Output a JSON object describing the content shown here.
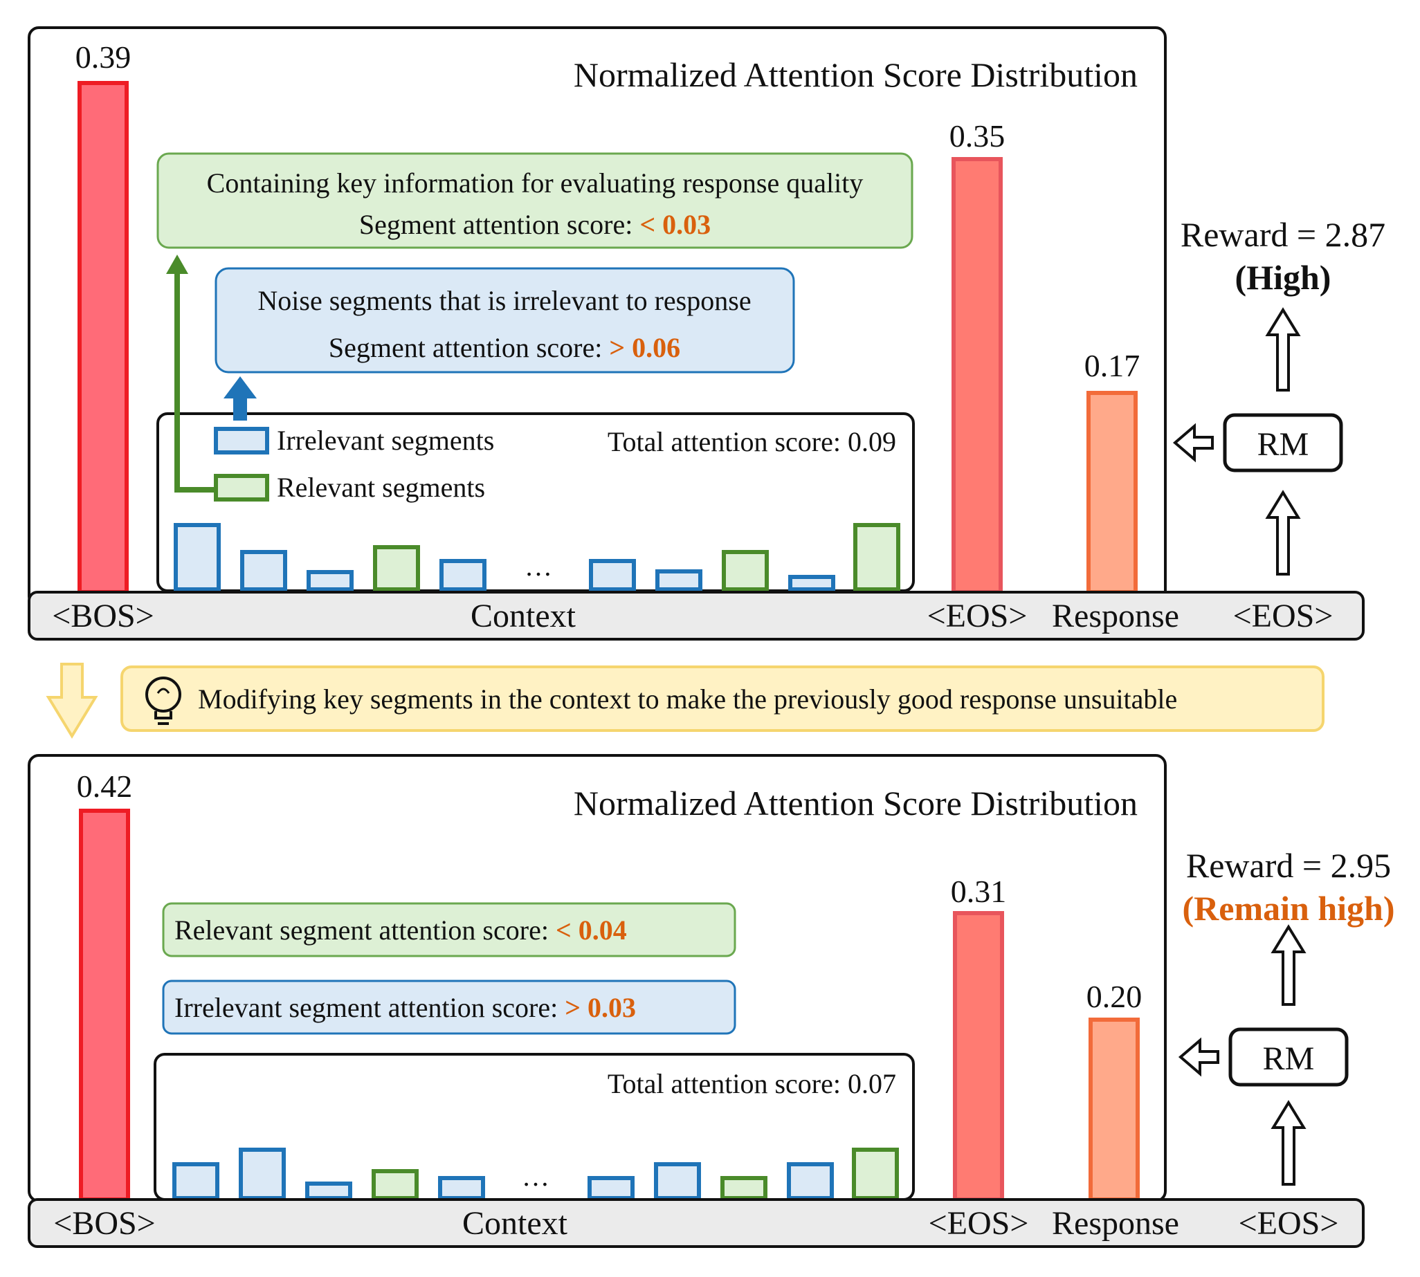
{
  "colors": {
    "bos_bar": "#ff6b78",
    "bos_stroke": "#ee1c24",
    "eos_bar": "#ff7b72",
    "eos_stroke": "#e8555c",
    "resp_bar": "#ffa98a",
    "resp_stroke": "#f26b3a",
    "irrelevant_fill": "#dbe9f6",
    "irrelevant_stroke": "#1f74b8",
    "relevant_fill": "#ddf0d5",
    "relevant_stroke": "#4a8b2a",
    "highlight": "#d9600d",
    "hint_fill": "#fff2c4",
    "hint_stroke": "#f5d56e"
  },
  "transition": {
    "icon": "lightbulb-icon",
    "text": "Modifying key segments in the context to make the previously good response unsuitable"
  },
  "panels": [
    {
      "title": "Normalized Attention Score Distribution",
      "bos_value": "0.39",
      "eos_value": "0.35",
      "response_value": "0.17",
      "axis": {
        "bos": "<BOS>",
        "context": "Context",
        "eos": "<EOS>",
        "response": "Response",
        "eos2": "<EOS>"
      },
      "total_attention": "Total attention score: 0.09",
      "legend": {
        "irrelevant": "Irrelevant segments",
        "relevant": "Relevant segments"
      },
      "green_box": {
        "line1": "Containing key information for evaluating response quality",
        "line2_prefix": "Segment attention score: ",
        "line2_value": "< 0.03"
      },
      "blue_box": {
        "line1": "Noise segments that is irrelevant to response",
        "line2_prefix": "Segment attention score: ",
        "line2_value": "> 0.06"
      },
      "rm": "RM",
      "reward": "Reward = 2.87",
      "reward_note": "(High)",
      "ellipsis": "…",
      "segments": [
        {
          "kind": "irrelevant",
          "level": 0.95
        },
        {
          "kind": "irrelevant",
          "level": 0.55
        },
        {
          "kind": "irrelevant",
          "level": 0.25
        },
        {
          "kind": "relevant",
          "level": 0.62
        },
        {
          "kind": "irrelevant",
          "level": 0.42
        },
        {
          "kind": "irrelevant",
          "level": 0.42
        },
        {
          "kind": "irrelevant",
          "level": 0.27
        },
        {
          "kind": "relevant",
          "level": 0.55
        },
        {
          "kind": "irrelevant",
          "level": 0.18
        },
        {
          "kind": "relevant",
          "level": 0.95
        }
      ]
    },
    {
      "title": "Normalized Attention Score Distribution",
      "bos_value": "0.42",
      "eos_value": "0.31",
      "response_value": "0.20",
      "axis": {
        "bos": "<BOS>",
        "context": "Context",
        "eos": "<EOS>",
        "response": "Response",
        "eos2": "<EOS>"
      },
      "total_attention": "Total attention score: 0.07",
      "green_box": {
        "prefix": "Relevant segment attention score: ",
        "value": "< 0.04"
      },
      "blue_box": {
        "prefix": "Irrelevant segment attention score: ",
        "value": "> 0.03"
      },
      "rm": "RM",
      "reward": "Reward = 2.95",
      "reward_note": "(Remain high)",
      "ellipsis": "…",
      "segments": [
        {
          "kind": "irrelevant",
          "level": 0.6
        },
        {
          "kind": "irrelevant",
          "level": 0.85
        },
        {
          "kind": "irrelevant",
          "level": 0.25
        },
        {
          "kind": "relevant",
          "level": 0.48
        },
        {
          "kind": "irrelevant",
          "level": 0.35
        },
        {
          "kind": "irrelevant",
          "level": 0.35
        },
        {
          "kind": "irrelevant",
          "level": 0.6
        },
        {
          "kind": "relevant",
          "level": 0.35
        },
        {
          "kind": "irrelevant",
          "level": 0.6
        },
        {
          "kind": "relevant",
          "level": 0.85
        }
      ]
    }
  ]
}
